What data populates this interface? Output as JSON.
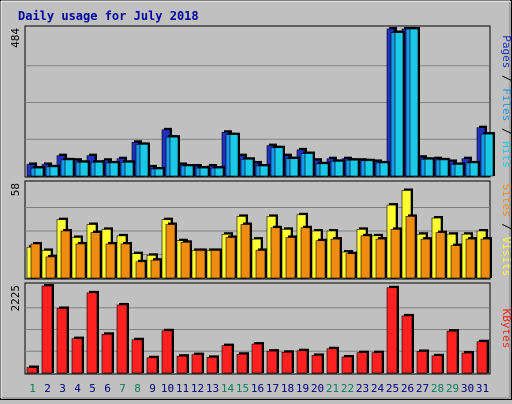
{
  "chart_data": [
    {
      "type": "bar",
      "title": "Daily usage for July 2018",
      "ymax_label": "484",
      "categories": [
        "1",
        "2",
        "3",
        "4",
        "5",
        "6",
        "7",
        "8",
        "9",
        "10",
        "11",
        "12",
        "13",
        "14",
        "15",
        "16",
        "17",
        "18",
        "19",
        "20",
        "21",
        "22",
        "23",
        "24",
        "25",
        "26",
        "27",
        "28",
        "29",
        "30",
        "31"
      ],
      "weekend_days": [
        "1",
        "7",
        "8",
        "14",
        "15",
        "21",
        "22",
        "28",
        "29"
      ],
      "ylim": [
        0,
        484
      ],
      "legend": [
        "Pages",
        "Files",
        "Hits"
      ],
      "series": [
        {
          "name": "Pages",
          "values": [
            38,
            38,
            67,
            52,
            67,
            52,
            57,
            111,
            30,
            152,
            38,
            33,
            33,
            144,
            67,
            43,
            100,
            67,
            86,
            52,
            57,
            57,
            52,
            48,
            484,
            484,
            62,
            57,
            48,
            57,
            159
          ]
        },
        {
          "name": "Files",
          "values": [
            26,
            30,
            53,
            45,
            45,
            43,
            45,
            104,
            23,
            128,
            33,
            26,
            26,
            136,
            55,
            33,
            93,
            57,
            74,
            40,
            48,
            52,
            50,
            43,
            472,
            484,
            55,
            53,
            38,
            43,
            138
          ]
        },
        {
          "name": "Hits",
          "values": [
            26,
            30,
            53,
            45,
            45,
            43,
            45,
            104,
            23,
            128,
            33,
            26,
            26,
            136,
            55,
            33,
            93,
            57,
            74,
            40,
            48,
            52,
            50,
            43,
            472,
            484,
            55,
            53,
            38,
            43,
            138
          ]
        }
      ],
      "colors": {
        "Pages": "#2030c0",
        "Files": "#1898e8",
        "Hits": "#1ac8e8"
      }
    },
    {
      "type": "bar",
      "ymax_label": "58",
      "ylim": [
        0,
        58
      ],
      "legend": [
        "Sites",
        "Visits"
      ],
      "series": [
        {
          "name": "Visits",
          "values": [
            19,
            17,
            36,
            25,
            33,
            30,
            26,
            15,
            14,
            36,
            23,
            17,
            17,
            27,
            38,
            24,
            38,
            30,
            39,
            29,
            29,
            16,
            30,
            26,
            45,
            54,
            27,
            37,
            27,
            27,
            29
          ]
        },
        {
          "name": "Sites",
          "values": [
            21,
            13,
            29,
            21,
            28,
            21,
            21,
            10,
            11,
            33,
            22,
            17,
            17,
            25,
            33,
            17,
            31,
            25,
            31,
            23,
            24,
            15,
            26,
            24,
            30,
            38,
            24,
            28,
            20,
            24,
            24
          ]
        }
      ],
      "colors": {
        "Sites": "#f08c10",
        "Visits": "#ffff30"
      }
    },
    {
      "type": "bar",
      "ymax_label": "2225",
      "ylim": [
        0,
        2225
      ],
      "legend": [
        "KBytes"
      ],
      "series": [
        {
          "name": "KBytes",
          "values": [
            140,
            2225,
            1650,
            880,
            2050,
            990,
            1740,
            850,
            390,
            1080,
            430,
            470,
            400,
            700,
            480,
            740,
            560,
            530,
            570,
            450,
            620,
            410,
            520,
            520,
            2180,
            1460,
            550,
            440,
            1070,
            510,
            800
          ]
        }
      ],
      "colors": {
        "KBytes": "#ff2020"
      }
    }
  ]
}
